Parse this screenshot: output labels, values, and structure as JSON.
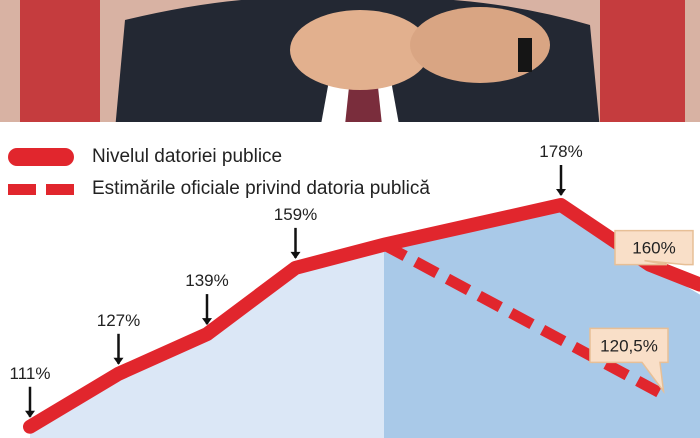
{
  "colors": {
    "red": "#e1262d",
    "area_light": "#dbe7f6",
    "area_dark": "#a9c9e8",
    "callout_bg": "#f9dfc8",
    "callout_border": "#e7bf96",
    "photo_red": "#c2272d",
    "suit": "#232833"
  },
  "legend": [
    {
      "label": "Nivelul datoriei publice",
      "style": "solid"
    },
    {
      "label": "Estimările oficiale privind datoria publică",
      "style": "dashed"
    }
  ],
  "chart_data": {
    "type": "area",
    "series": [
      {
        "name": "Nivelul datoriei publice",
        "style": "solid",
        "points": [
          {
            "i": 0,
            "y": 111,
            "label": "111%"
          },
          {
            "i": 1,
            "y": 127,
            "label": "127%"
          },
          {
            "i": 2,
            "y": 139,
            "label": "139%"
          },
          {
            "i": 3,
            "y": 159,
            "label": "159%"
          },
          {
            "i": 4,
            "y": 166,
            "label": ""
          },
          {
            "i": 5,
            "y": 172,
            "label": ""
          },
          {
            "i": 6,
            "y": 178,
            "label": "178%"
          },
          {
            "i": 7,
            "y": 160,
            "label": "160%"
          }
        ]
      },
      {
        "name": "Estimările oficiale privind datoria publică",
        "style": "dashed",
        "points": [
          {
            "i": 4,
            "y": 166,
            "label": ""
          },
          {
            "i": 7,
            "y": 120.5,
            "label": "120,5%"
          }
        ]
      }
    ],
    "shaded_from_index": 4,
    "callouts": [
      "160%",
      "120,5%"
    ]
  }
}
